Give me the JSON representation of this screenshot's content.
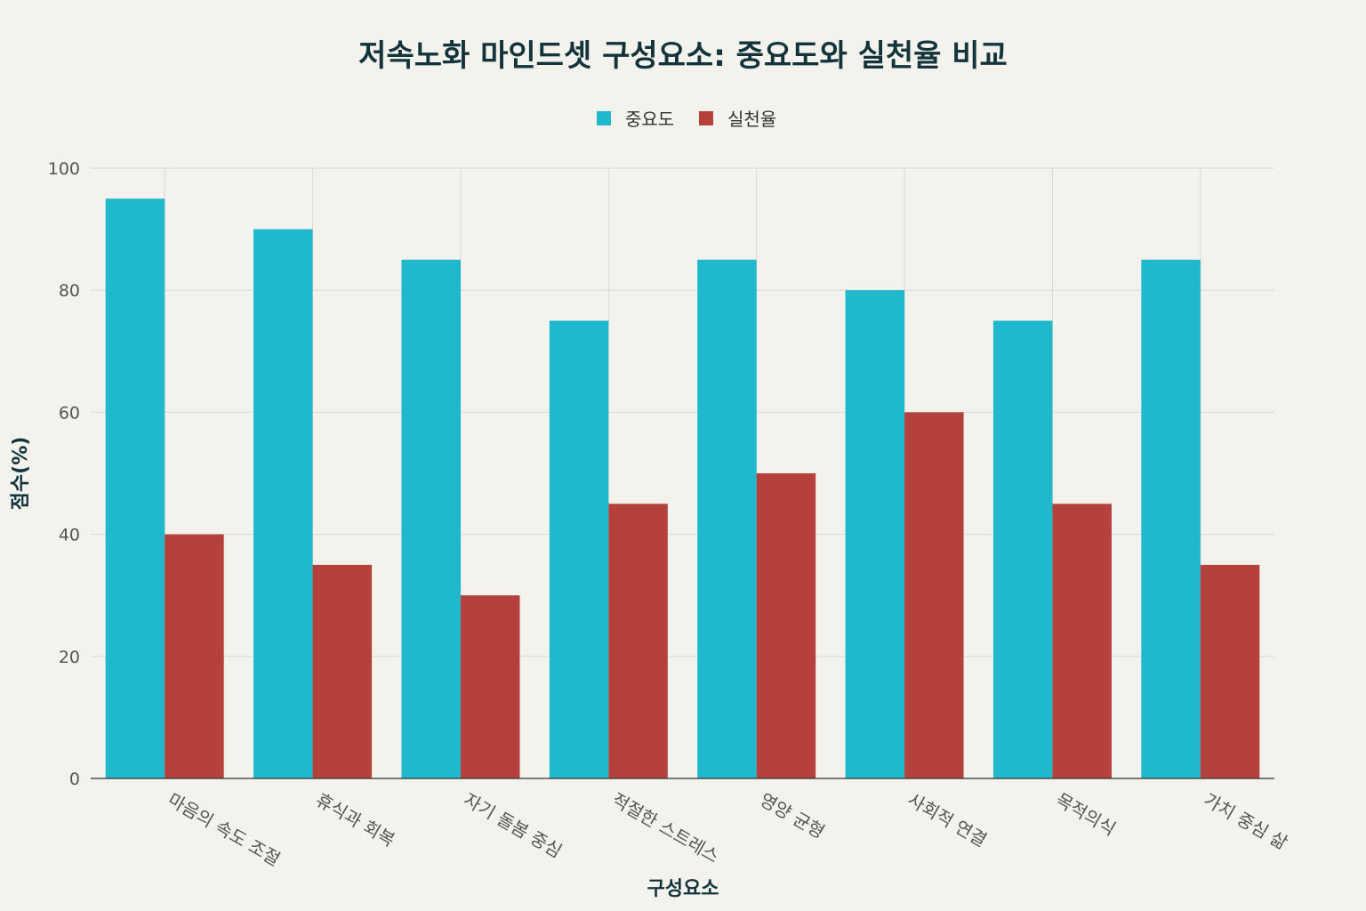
{
  "chart_data": {
    "type": "bar",
    "title": "저속노화 마인드셋 구성요소: 중요도와 실천율 비교",
    "xlabel": "구성요소",
    "ylabel": "점수(%)",
    "ylim": [
      0,
      100
    ],
    "yticks": [
      0,
      20,
      40,
      60,
      80,
      100
    ],
    "grid": true,
    "legend_position": "top-center",
    "categories": [
      "마음의 속도 조절",
      "휴식과 회복",
      "자기 돌봄 중심",
      "적절한 스트레스",
      "영양 균형",
      "사회적 연결",
      "목적의식",
      "가치 중심 삶"
    ],
    "series": [
      {
        "name": "중요도",
        "color": "#1fb8cd",
        "values": [
          95,
          90,
          85,
          75,
          85,
          80,
          75,
          85
        ]
      },
      {
        "name": "실천율",
        "color": "#b4413c",
        "values": [
          40,
          35,
          30,
          45,
          50,
          60,
          45,
          35
        ]
      }
    ]
  }
}
